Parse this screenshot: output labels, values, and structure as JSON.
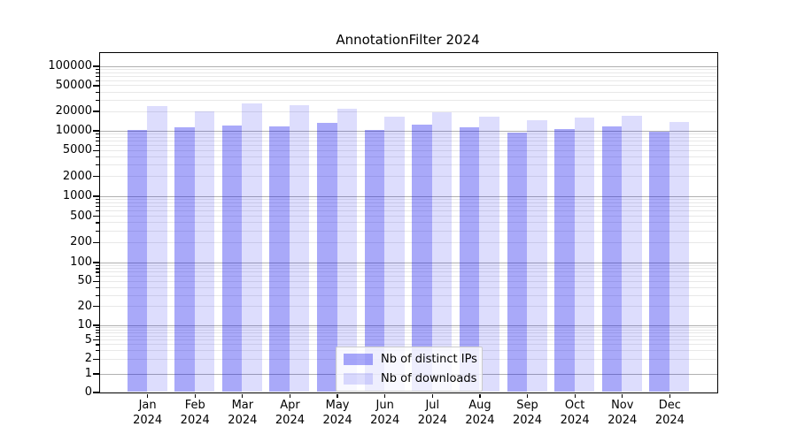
{
  "title": "AnnotationFilter 2024",
  "chart_data": {
    "type": "bar",
    "title": "AnnotationFilter 2024",
    "categories": [
      "Jan",
      "Feb",
      "Mar",
      "Apr",
      "May",
      "Jun",
      "Jul",
      "Aug",
      "Sep",
      "Oct",
      "Nov",
      "Dec"
    ],
    "category_year": "2024",
    "series": [
      {
        "name": "Nb of distinct IPs",
        "base_color": "#0202ee",
        "alpha": 0.34,
        "values": [
          10100,
          11000,
          12000,
          11600,
          13200,
          10300,
          12300,
          11100,
          9200,
          10600,
          11600,
          9400
        ]
      },
      {
        "name": "Nb of downloads",
        "base_color": "#0202ee",
        "alpha": 0.135,
        "values": [
          24000,
          19700,
          26500,
          24800,
          21500,
          16500,
          19000,
          16200,
          14600,
          15900,
          17000,
          13700
        ]
      }
    ],
    "xlabel": "",
    "ylabel": "",
    "yscale": "symlog",
    "ylim": [
      0,
      160000
    ],
    "ytick_labels": [
      "100000",
      "50000",
      "20000",
      "10000",
      "5000",
      "2000",
      "1000",
      "500",
      "200",
      "100",
      "50",
      "20",
      "10",
      "5",
      "2",
      "1",
      "0"
    ],
    "grid": true,
    "legend_position": "lower center",
    "colors": {
      "major_grid": "#b0b0b0",
      "minor_grid": "#e8e8e8",
      "axis": "#000000"
    }
  }
}
